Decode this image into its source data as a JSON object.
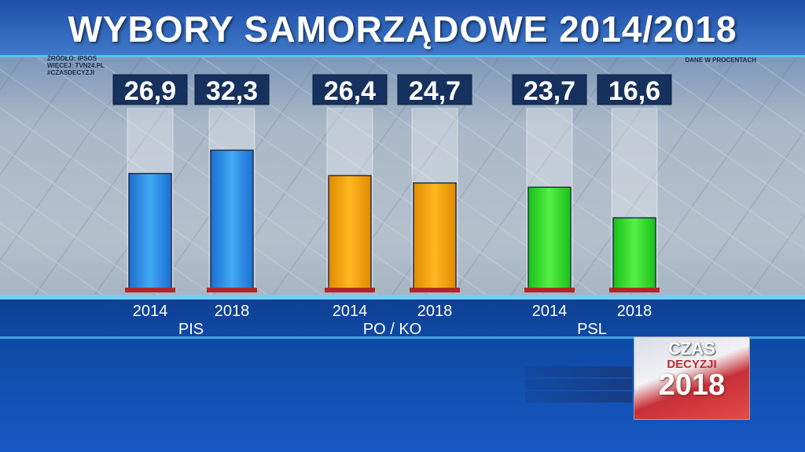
{
  "title": "WYBORY SAMORZĄDOWE 2014/2018",
  "source": {
    "line1": "ŹRÓDŁO: IPSOS",
    "line2": "WIĘCEJ: TVN24.PL",
    "line3": "#CZASDECYZJI"
  },
  "unit_note": "DANE W PROCENTACH",
  "logo": {
    "line1": "CZAS",
    "line2": "DECYZJI",
    "line3": "2018"
  },
  "colors": {
    "pis": "#2a8fe6",
    "po_ko": "#f0a000",
    "psl": "#2ee02e",
    "text": "#ffffff"
  },
  "chart_data": {
    "type": "bar",
    "title": "WYBORY SAMORZĄDOWE 2014/2018",
    "groups": [
      {
        "name": "PIS",
        "bars": [
          {
            "year": "2014",
            "value": 26.9,
            "label": "26,9"
          },
          {
            "year": "2018",
            "value": 32.3,
            "label": "32,3"
          }
        ]
      },
      {
        "name": "PO / KO",
        "bars": [
          {
            "year": "2014",
            "value": 26.4,
            "label": "26,4"
          },
          {
            "year": "2018",
            "value": 24.7,
            "label": "24,7"
          }
        ]
      },
      {
        "name": "PSL",
        "bars": [
          {
            "year": "2014",
            "value": 23.7,
            "label": "23,7"
          },
          {
            "year": "2018",
            "value": 16.6,
            "label": "16,6"
          }
        ]
      }
    ],
    "ylim": [
      0,
      42
    ],
    "grid": false
  }
}
